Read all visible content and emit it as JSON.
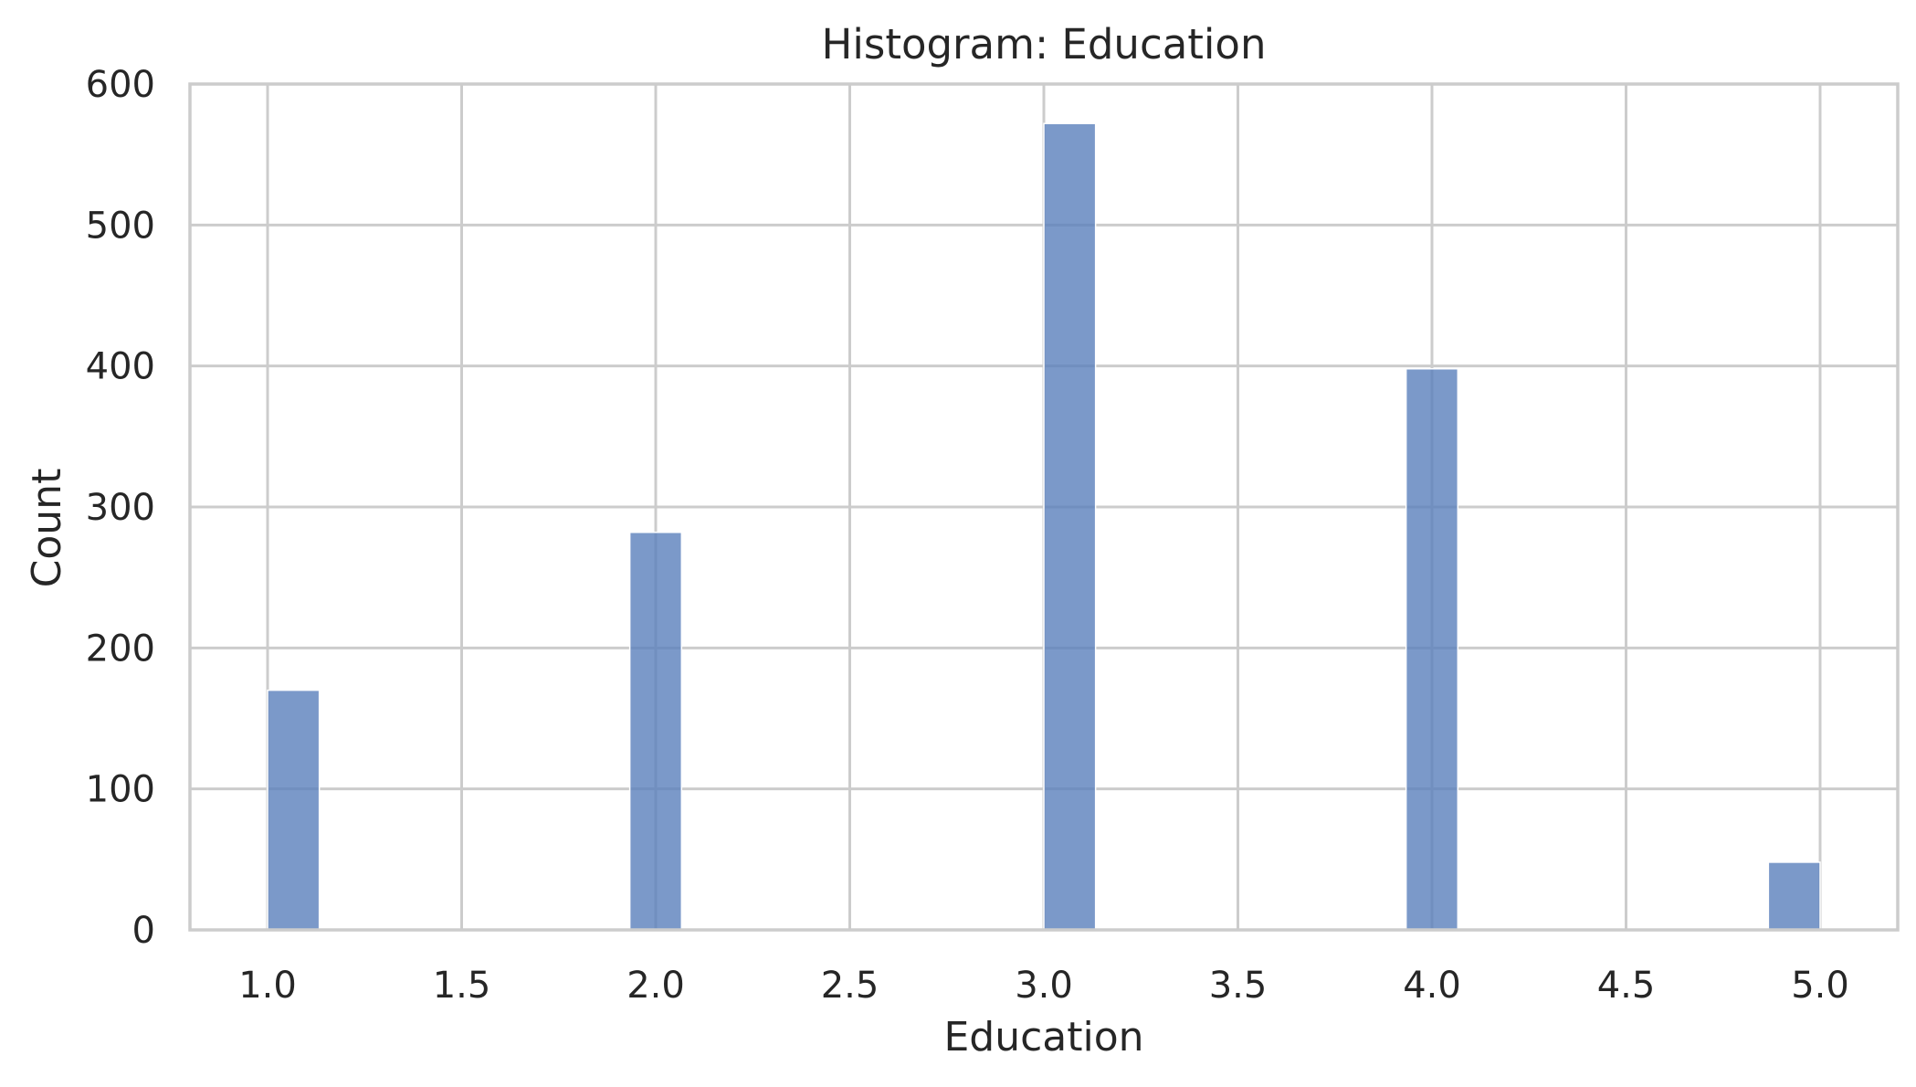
{
  "chart_data": {
    "type": "bar",
    "title": "Histogram: Education",
    "xlabel": "Education",
    "ylabel": "Count",
    "xlim": [
      0.8,
      5.2
    ],
    "ylim": [
      0,
      600
    ],
    "x_ticks": [
      1.0,
      1.5,
      2.0,
      2.5,
      3.0,
      3.5,
      4.0,
      4.5,
      5.0
    ],
    "x_tick_labels": [
      "1.0",
      "1.5",
      "2.0",
      "2.5",
      "3.0",
      "3.5",
      "4.0",
      "4.5",
      "5.0"
    ],
    "y_ticks": [
      0,
      100,
      200,
      300,
      400,
      500,
      600
    ],
    "y_tick_labels": [
      "0",
      "100",
      "200",
      "300",
      "400",
      "500",
      "600"
    ],
    "bin_width": 0.1333,
    "bins": [
      {
        "x_start": 1.0,
        "value": 170
      },
      {
        "x_start": 1.9333,
        "value": 282
      },
      {
        "x_start": 3.0,
        "value": 572
      },
      {
        "x_start": 3.9333,
        "value": 398
      },
      {
        "x_start": 4.8667,
        "value": 48
      }
    ],
    "grid": true,
    "legend": null,
    "colors": {
      "bar": "#5a7fbb",
      "grid": "#cccccc",
      "text": "#262626"
    }
  }
}
